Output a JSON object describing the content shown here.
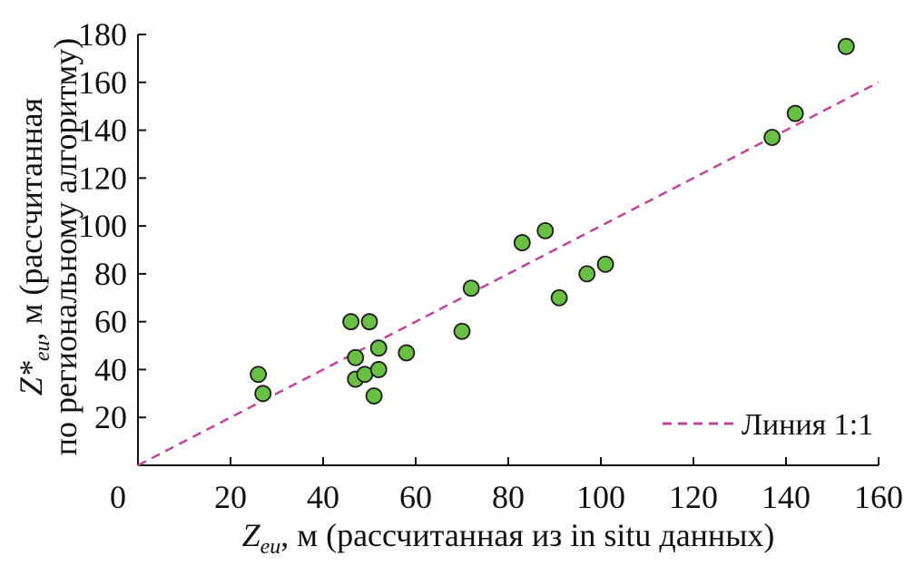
{
  "chart_data": {
    "type": "scatter",
    "title": "",
    "xlabel": {
      "var": "Z",
      "sub": "eu",
      "rest": ", м (рассчитанная из in situ данных)"
    },
    "ylabel": {
      "var": "Z*",
      "sub": "eu",
      "rest": ", м (рассчитанная",
      "line2": "по региональному алгоритму)"
    },
    "xlim": [
      0,
      160
    ],
    "ylim": [
      0,
      180
    ],
    "xticks": [
      0,
      20,
      40,
      60,
      80,
      100,
      120,
      140,
      160
    ],
    "yticks": [
      20,
      40,
      60,
      80,
      100,
      120,
      140,
      160,
      180
    ],
    "grid": false,
    "legend": {
      "position": "bottom-right",
      "entries": [
        "Линия 1:1"
      ]
    },
    "series": [
      {
        "kind": "points",
        "color": "#6abf45",
        "edge_color": "#1a1a1a",
        "points": [
          {
            "x": 26,
            "y": 38
          },
          {
            "x": 27,
            "y": 30
          },
          {
            "x": 46,
            "y": 60
          },
          {
            "x": 47,
            "y": 45
          },
          {
            "x": 47,
            "y": 36
          },
          {
            "x": 49,
            "y": 38
          },
          {
            "x": 50,
            "y": 60
          },
          {
            "x": 51,
            "y": 29
          },
          {
            "x": 52,
            "y": 49
          },
          {
            "x": 52,
            "y": 40
          },
          {
            "x": 58,
            "y": 47
          },
          {
            "x": 70,
            "y": 56
          },
          {
            "x": 72,
            "y": 74
          },
          {
            "x": 83,
            "y": 93
          },
          {
            "x": 88,
            "y": 98
          },
          {
            "x": 91,
            "y": 70
          },
          {
            "x": 97,
            "y": 80
          },
          {
            "x": 101,
            "y": 84
          },
          {
            "x": 137,
            "y": 137
          },
          {
            "x": 142,
            "y": 147
          },
          {
            "x": 153,
            "y": 175
          }
        ]
      },
      {
        "kind": "line",
        "name": "Линия 1:1",
        "color": "#c0439a",
        "dash": "dashed",
        "points": [
          {
            "x": 0,
            "y": 0
          },
          {
            "x": 160,
            "y": 160
          }
        ]
      }
    ]
  }
}
